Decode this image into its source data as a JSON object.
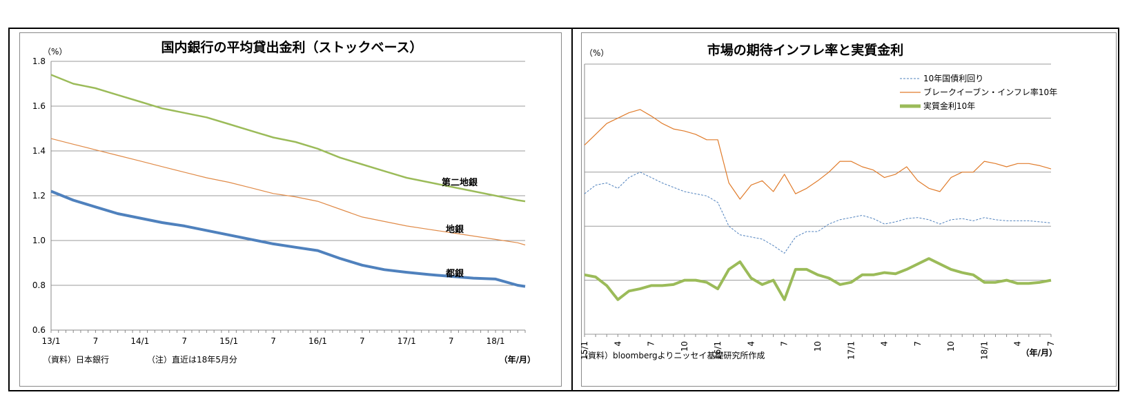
{
  "chart_data": [
    {
      "type": "line",
      "title": "国内銀行の平均貸出金利（ストックベース）",
      "ylabel": "（%）",
      "xlabel": "（年/月）",
      "ylim": [
        0.6,
        1.8
      ],
      "yticks": [
        "0.6",
        "0.8",
        "1.0",
        "1.2",
        "1.4",
        "1.6",
        "1.8"
      ],
      "xticks": [
        "13/1",
        "7",
        "14/1",
        "7",
        "15/1",
        "7",
        "16/1",
        "7",
        "17/1",
        "7",
        "18/1"
      ],
      "grid": true,
      "source": "（資料）日本銀行",
      "note": "（注）直近は18年5月分",
      "x": [
        "13/1",
        "13/4",
        "13/7",
        "13/10",
        "14/1",
        "14/4",
        "14/7",
        "14/10",
        "15/1",
        "15/4",
        "15/7",
        "15/10",
        "16/1",
        "16/4",
        "16/7",
        "16/10",
        "17/1",
        "17/4",
        "17/7",
        "17/10",
        "18/1",
        "18/4",
        "18/5"
      ],
      "series": [
        {
          "name": "第二地銀",
          "color": "#9bbb59",
          "values": [
            1.74,
            1.7,
            1.68,
            1.65,
            1.62,
            1.59,
            1.57,
            1.55,
            1.52,
            1.49,
            1.46,
            1.44,
            1.41,
            1.37,
            1.34,
            1.31,
            1.28,
            1.26,
            1.24,
            1.22,
            1.2,
            1.18,
            1.175
          ]
        },
        {
          "name": "地銀",
          "color": "#e08a47",
          "values": [
            1.455,
            1.43,
            1.405,
            1.38,
            1.355,
            1.33,
            1.305,
            1.28,
            1.26,
            1.235,
            1.21,
            1.195,
            1.175,
            1.14,
            1.105,
            1.085,
            1.065,
            1.05,
            1.035,
            1.02,
            1.005,
            0.99,
            0.98
          ]
        },
        {
          "name": "都銀",
          "color": "#4f81bd",
          "values": [
            1.22,
            1.18,
            1.15,
            1.12,
            1.1,
            1.08,
            1.065,
            1.045,
            1.025,
            1.005,
            0.985,
            0.97,
            0.955,
            0.92,
            0.89,
            0.87,
            0.858,
            0.848,
            0.84,
            0.832,
            0.828,
            0.8,
            0.795
          ]
        }
      ]
    },
    {
      "type": "line",
      "title": "市場の期待インフレ率と実質金利",
      "ylabel": "（%）",
      "xlabel": "（年/月）",
      "ylim": [
        -1.0,
        1.5
      ],
      "yticks": [
        "-1.0",
        "-0.5",
        "0.0",
        "0.5",
        "1.0",
        "1.5"
      ],
      "xticks": [
        "15/1",
        "4",
        "7",
        "10",
        "16/1",
        "4",
        "7",
        "10",
        "17/1",
        "4",
        "7",
        "10",
        "18/1",
        "4",
        "7"
      ],
      "grid": true,
      "legend": "top-right",
      "source": "（資料）bloombergよりニッセイ基礎研究所作成",
      "x": [
        "15/1",
        "15/2",
        "15/3",
        "15/4",
        "15/5",
        "15/6",
        "15/7",
        "15/8",
        "15/9",
        "15/10",
        "15/11",
        "15/12",
        "16/1",
        "16/2",
        "16/3",
        "16/4",
        "16/5",
        "16/6",
        "16/7",
        "16/8",
        "16/9",
        "16/10",
        "16/11",
        "16/12",
        "17/1",
        "17/2",
        "17/3",
        "17/4",
        "17/5",
        "17/6",
        "17/7",
        "17/8",
        "17/9",
        "17/10",
        "17/11",
        "17/12",
        "18/1",
        "18/2",
        "18/3",
        "18/4",
        "18/5",
        "18/6",
        "18/7"
      ],
      "series": [
        {
          "name": "10年国債利回り",
          "color": "#4f81bd",
          "dash": true,
          "values": [
            0.3,
            0.38,
            0.4,
            0.35,
            0.45,
            0.5,
            0.45,
            0.4,
            0.36,
            0.32,
            0.3,
            0.28,
            0.22,
            0.0,
            -0.08,
            -0.1,
            -0.12,
            -0.18,
            -0.25,
            -0.1,
            -0.05,
            -0.05,
            0.02,
            0.06,
            0.08,
            0.1,
            0.07,
            0.02,
            0.04,
            0.07,
            0.08,
            0.06,
            0.02,
            0.06,
            0.07,
            0.05,
            0.08,
            0.06,
            0.05,
            0.05,
            0.05,
            0.04,
            0.03
          ]
        },
        {
          "name": "ブレークイーブン・インフレ率10年",
          "color": "#e07b2a",
          "dash": false,
          "values": [
            0.75,
            0.85,
            0.95,
            1.0,
            1.05,
            1.08,
            1.02,
            0.95,
            0.9,
            0.88,
            0.85,
            0.8,
            0.8,
            0.4,
            0.25,
            0.38,
            0.42,
            0.32,
            0.48,
            0.3,
            0.35,
            0.42,
            0.5,
            0.6,
            0.6,
            0.55,
            0.52,
            0.45,
            0.48,
            0.55,
            0.42,
            0.35,
            0.32,
            0.45,
            0.5,
            0.5,
            0.6,
            0.58,
            0.55,
            0.58,
            0.58,
            0.56,
            0.53
          ]
        },
        {
          "name": "実質金利10年",
          "color": "#9bbb59",
          "dash": false,
          "values": [
            -0.45,
            -0.47,
            -0.55,
            -0.68,
            -0.6,
            -0.58,
            -0.55,
            -0.55,
            -0.54,
            -0.5,
            -0.5,
            -0.52,
            -0.58,
            -0.4,
            -0.33,
            -0.48,
            -0.54,
            -0.5,
            -0.68,
            -0.4,
            -0.4,
            -0.45,
            -0.48,
            -0.54,
            -0.52,
            -0.45,
            -0.45,
            -0.43,
            -0.44,
            -0.4,
            -0.35,
            -0.3,
            -0.35,
            -0.4,
            -0.43,
            -0.45,
            -0.52,
            -0.52,
            -0.5,
            -0.53,
            -0.53,
            -0.52,
            -0.5
          ]
        }
      ]
    }
  ],
  "left_labels": {
    "second_regional": "第二地銀",
    "regional": "地銀",
    "city": "都銀"
  }
}
